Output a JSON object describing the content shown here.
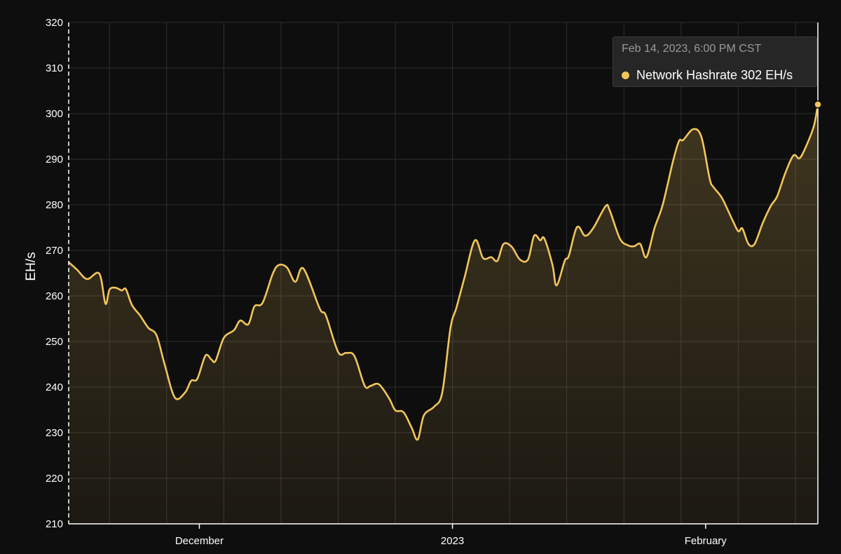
{
  "colors": {
    "background": "#0e0e0e",
    "line": "#f2c55c",
    "grid": "#2e2e2e",
    "axis": "#ffffff"
  },
  "tooltip": {
    "date": "Feb 14, 2023, 6:00 PM CST",
    "series_label": "Network Hashrate",
    "value_text": "302 EH/s",
    "marker_color": "#f2c55c"
  },
  "chart_data": {
    "type": "area",
    "title": "",
    "xlabel": "",
    "ylabel": "EH/s",
    "ylim": [
      210,
      320
    ],
    "xlim": [
      "2022-11-15T00:00",
      "2023-02-14T18:00"
    ],
    "yticks": [
      "210",
      "220",
      "230",
      "240",
      "250",
      "260",
      "270",
      "280",
      "290",
      "300",
      "310",
      "320"
    ],
    "xticks": [
      {
        "date": "2022-12-01T00:00",
        "label": "December"
      },
      {
        "date": "2023-01-01T00:00",
        "label": "2023"
      },
      {
        "date": "2023-02-01T00:00",
        "label": "February"
      }
    ],
    "grid": "on (weekly vertical lines, horizontal at each y tick)",
    "legend": "none",
    "series": [
      {
        "name": "Network Hashrate",
        "points": [
          [
            "2022-11-15T00:00",
            267.4
          ],
          [
            "2022-11-16T00:00",
            265.8
          ],
          [
            "2022-11-17T06:00",
            263.7
          ],
          [
            "2022-11-18T18:00",
            264.9
          ],
          [
            "2022-11-19T12:00",
            258.3
          ],
          [
            "2022-11-20T00:00",
            261.4
          ],
          [
            "2022-11-20T18:00",
            261.8
          ],
          [
            "2022-11-21T12:00",
            261.2
          ],
          [
            "2022-11-22T00:00",
            261.5
          ],
          [
            "2022-11-22T18:00",
            258.0
          ],
          [
            "2022-11-23T18:00",
            255.7
          ],
          [
            "2022-11-24T18:00",
            253.0
          ],
          [
            "2022-11-25T18:00",
            251.4
          ],
          [
            "2022-11-26T18:00",
            245.0
          ],
          [
            "2022-11-28T00:00",
            237.7
          ],
          [
            "2022-11-29T06:00",
            238.8
          ],
          [
            "2022-11-30T00:00",
            241.4
          ],
          [
            "2022-11-30T18:00",
            241.8
          ],
          [
            "2022-12-01T18:00",
            246.9
          ],
          [
            "2022-12-02T12:00",
            246.0
          ],
          [
            "2022-12-03T00:00",
            245.8
          ],
          [
            "2022-12-04T00:00",
            250.8
          ],
          [
            "2022-12-05T06:00",
            252.5
          ],
          [
            "2022-12-06T00:00",
            254.6
          ],
          [
            "2022-12-07T00:00",
            253.8
          ],
          [
            "2022-12-07T18:00",
            257.7
          ],
          [
            "2022-12-08T18:00",
            258.5
          ],
          [
            "2022-12-10T00:00",
            264.9
          ],
          [
            "2022-12-10T18:00",
            266.8
          ],
          [
            "2022-12-11T18:00",
            266.2
          ],
          [
            "2022-12-12T18:00",
            263.1
          ],
          [
            "2022-12-13T18:00",
            266.0
          ],
          [
            "2022-12-15T18:00",
            257.2
          ],
          [
            "2022-12-16T12:00",
            255.7
          ],
          [
            "2022-12-18T00:00",
            247.7
          ],
          [
            "2022-12-19T00:00",
            247.5
          ],
          [
            "2022-12-20T00:00",
            246.8
          ],
          [
            "2022-12-21T06:00",
            240.3
          ],
          [
            "2022-12-22T00:00",
            240.3
          ],
          [
            "2022-12-23T00:00",
            240.6
          ],
          [
            "2022-12-24T06:00",
            237.5
          ],
          [
            "2022-12-25T00:00",
            234.9
          ],
          [
            "2022-12-26T00:00",
            234.5
          ],
          [
            "2022-12-27T00:00",
            231.1
          ],
          [
            "2022-12-27T18:00",
            228.5
          ],
          [
            "2022-12-28T12:00",
            233.8
          ],
          [
            "2022-12-29T18:00",
            235.7
          ],
          [
            "2022-12-30T18:00",
            238.8
          ],
          [
            "2022-12-31T18:00",
            252.9
          ],
          [
            "2023-01-01T12:00",
            257.5
          ],
          [
            "2023-01-02T12:00",
            264.2
          ],
          [
            "2023-01-03T18:00",
            272.2
          ],
          [
            "2023-01-04T18:00",
            268.3
          ],
          [
            "2023-01-05T18:00",
            268.5
          ],
          [
            "2023-01-06T12:00",
            267.7
          ],
          [
            "2023-01-07T06:00",
            271.4
          ],
          [
            "2023-01-08T06:00",
            270.8
          ],
          [
            "2023-01-09T06:00",
            268.0
          ],
          [
            "2023-01-10T06:00",
            268.0
          ],
          [
            "2023-01-11T00:00",
            273.2
          ],
          [
            "2023-01-11T18:00",
            272.2
          ],
          [
            "2023-01-12T06:00",
            272.6
          ],
          [
            "2023-01-13T06:00",
            266.8
          ],
          [
            "2023-01-13T18:00",
            262.3
          ],
          [
            "2023-01-14T18:00",
            267.7
          ],
          [
            "2023-01-15T06:00",
            268.8
          ],
          [
            "2023-01-16T06:00",
            275.1
          ],
          [
            "2023-01-17T06:00",
            273.2
          ],
          [
            "2023-01-18T06:00",
            274.9
          ],
          [
            "2023-01-19T18:00",
            279.7
          ],
          [
            "2023-01-20T06:00",
            278.8
          ],
          [
            "2023-01-21T12:00",
            272.6
          ],
          [
            "2023-01-22T12:00",
            271.1
          ],
          [
            "2023-01-23T06:00",
            270.9
          ],
          [
            "2023-01-24T00:00",
            271.4
          ],
          [
            "2023-01-24T18:00",
            268.5
          ],
          [
            "2023-01-25T18:00",
            274.9
          ],
          [
            "2023-01-26T18:00",
            280.0
          ],
          [
            "2023-01-28T00:00",
            289.5
          ],
          [
            "2023-01-28T18:00",
            294.0
          ],
          [
            "2023-01-29T06:00",
            294.2
          ],
          [
            "2023-01-30T12:00",
            296.6
          ],
          [
            "2023-01-31T12:00",
            294.8
          ],
          [
            "2023-02-01T12:00",
            285.7
          ],
          [
            "2023-02-02T00:00",
            283.8
          ],
          [
            "2023-02-03T00:00",
            281.5
          ],
          [
            "2023-02-04T06:00",
            276.8
          ],
          [
            "2023-02-05T00:00",
            274.2
          ],
          [
            "2023-02-05T12:00",
            274.8
          ],
          [
            "2023-02-06T06:00",
            271.4
          ],
          [
            "2023-02-07T00:00",
            271.4
          ],
          [
            "2023-02-08T00:00",
            276.0
          ],
          [
            "2023-02-09T00:00",
            279.8
          ],
          [
            "2023-02-09T18:00",
            281.8
          ],
          [
            "2023-02-10T18:00",
            286.9
          ],
          [
            "2023-02-11T18:00",
            290.8
          ],
          [
            "2023-02-12T12:00",
            290.2
          ],
          [
            "2023-02-13T06:00",
            292.6
          ],
          [
            "2023-02-14T06:00",
            297.2
          ],
          [
            "2023-02-14T18:00",
            302.0
          ]
        ]
      }
    ]
  }
}
